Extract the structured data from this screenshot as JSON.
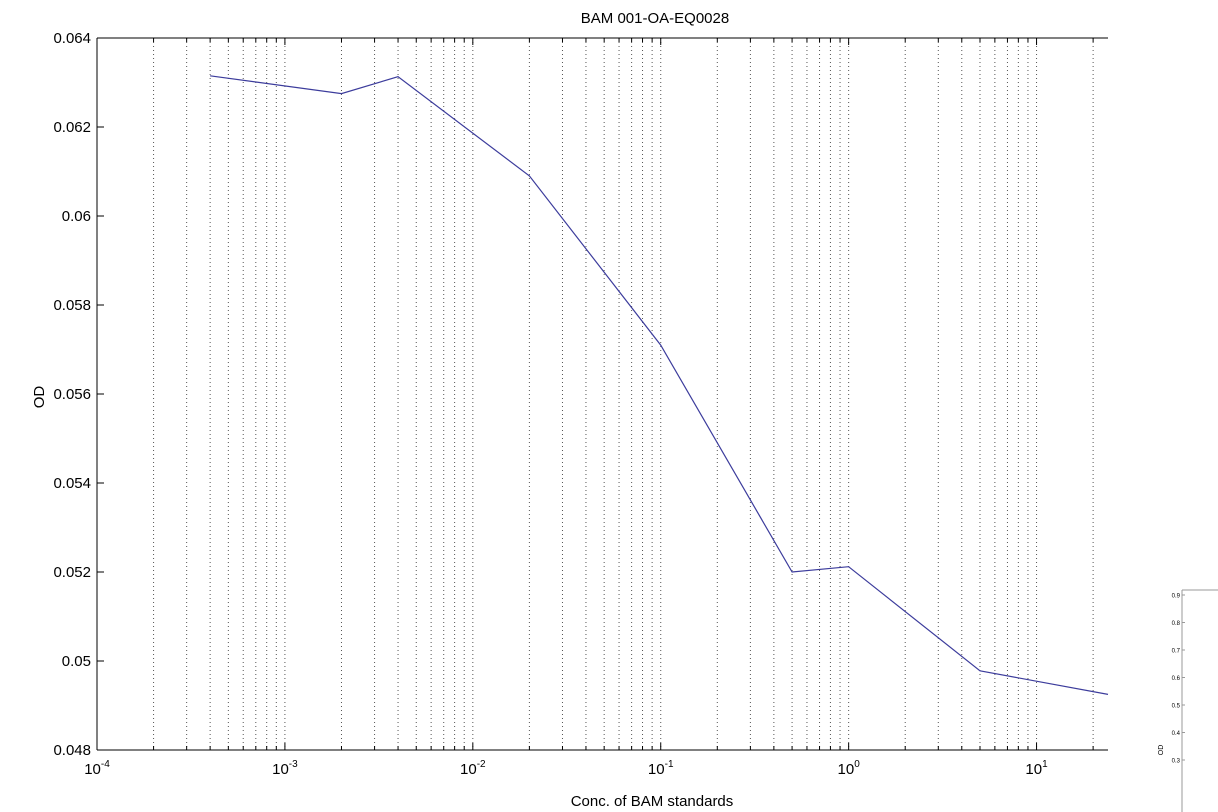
{
  "chart_data": {
    "type": "line",
    "title": "BAM 001-OA-EQ0028",
    "xlabel": "Conc. of BAM standards",
    "ylabel": "OD",
    "x_scale": "log",
    "xlim": [
      0.0001,
      24
    ],
    "ylim": [
      0.048,
      0.064
    ],
    "grid": {
      "x": "minor-dotted",
      "y": false
    },
    "y_ticks": [
      "0.048",
      "0.05",
      "0.052",
      "0.054",
      "0.056",
      "0.058",
      "0.06",
      "0.062",
      "0.064"
    ],
    "x_ticks": [
      {
        "base": "10",
        "exp": "-4"
      },
      {
        "base": "10",
        "exp": "-3"
      },
      {
        "base": "10",
        "exp": "-2"
      },
      {
        "base": "10",
        "exp": "-1"
      },
      {
        "base": "10",
        "exp": "0"
      },
      {
        "base": "10",
        "exp": "1"
      }
    ],
    "series": [
      {
        "color": "#3c3c9c",
        "x": [
          0.0004,
          0.002,
          0.004,
          0.02,
          0.1,
          0.5,
          1,
          5,
          24
        ],
        "y": [
          0.06315,
          0.06275,
          0.06313,
          0.0609,
          0.0571,
          0.052,
          0.05212,
          0.04978,
          0.04925
        ]
      }
    ]
  },
  "inset": {
    "y_ticks": [
      "0.9",
      "0.8",
      "0.7",
      "0.6",
      "0.5",
      "0.4",
      "0.3"
    ],
    "ylabel": "OD"
  }
}
